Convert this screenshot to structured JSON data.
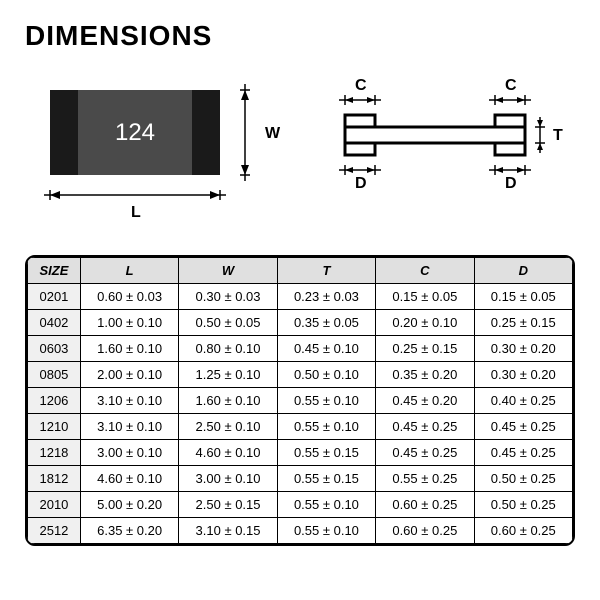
{
  "title": "DIMENSIONS",
  "diagram": {
    "top_view": {
      "chip_text": "124",
      "body_color": "#4a4a4a",
      "terminal_color": "#1a1a1a",
      "label_L": "L",
      "label_W": "W"
    },
    "side_view": {
      "body_fill": "#ffffff",
      "outline_color": "#000000",
      "label_C": "C",
      "label_D": "D",
      "label_T": "T"
    },
    "arrow_color": "#000000"
  },
  "table": {
    "columns": [
      "SIZE",
      "L",
      "W",
      "T",
      "C",
      "D"
    ],
    "header_bg": "#e0e0e0",
    "size_col_bg": "#f0f0f0",
    "border_color": "#000000",
    "rows": [
      [
        "0201",
        "0.60 ± 0.03",
        "0.30 ± 0.03",
        "0.23 ± 0.03",
        "0.15 ± 0.05",
        "0.15 ± 0.05"
      ],
      [
        "0402",
        "1.00 ± 0.10",
        "0.50 ± 0.05",
        "0.35 ± 0.05",
        "0.20 ± 0.10",
        "0.25 ± 0.15"
      ],
      [
        "0603",
        "1.60 ± 0.10",
        "0.80 ± 0.10",
        "0.45 ± 0.10",
        "0.25 ± 0.15",
        "0.30 ± 0.20"
      ],
      [
        "0805",
        "2.00 ± 0.10",
        "1.25 ± 0.10",
        "0.50 ± 0.10",
        "0.35 ± 0.20",
        "0.30 ± 0.20"
      ],
      [
        "1206",
        "3.10 ± 0.10",
        "1.60 ± 0.10",
        "0.55 ± 0.10",
        "0.45 ± 0.20",
        "0.40 ± 0.25"
      ],
      [
        "1210",
        "3.10 ± 0.10",
        "2.50 ± 0.10",
        "0.55 ± 0.10",
        "0.45 ± 0.25",
        "0.45 ± 0.25"
      ],
      [
        "1218",
        "3.00 ± 0.10",
        "4.60 ± 0.10",
        "0.55 ± 0.15",
        "0.45 ± 0.25",
        "0.45 ± 0.25"
      ],
      [
        "1812",
        "4.60 ± 0.10",
        "3.00 ± 0.10",
        "0.55 ± 0.15",
        "0.55 ± 0.25",
        "0.50 ± 0.25"
      ],
      [
        "2010",
        "5.00 ± 0.20",
        "2.50 ± 0.15",
        "0.55 ± 0.10",
        "0.60 ± 0.25",
        "0.50 ± 0.25"
      ],
      [
        "2512",
        "6.35 ± 0.20",
        "3.10 ± 0.15",
        "0.55 ± 0.10",
        "0.60 ± 0.25",
        "0.60 ± 0.25"
      ]
    ]
  }
}
